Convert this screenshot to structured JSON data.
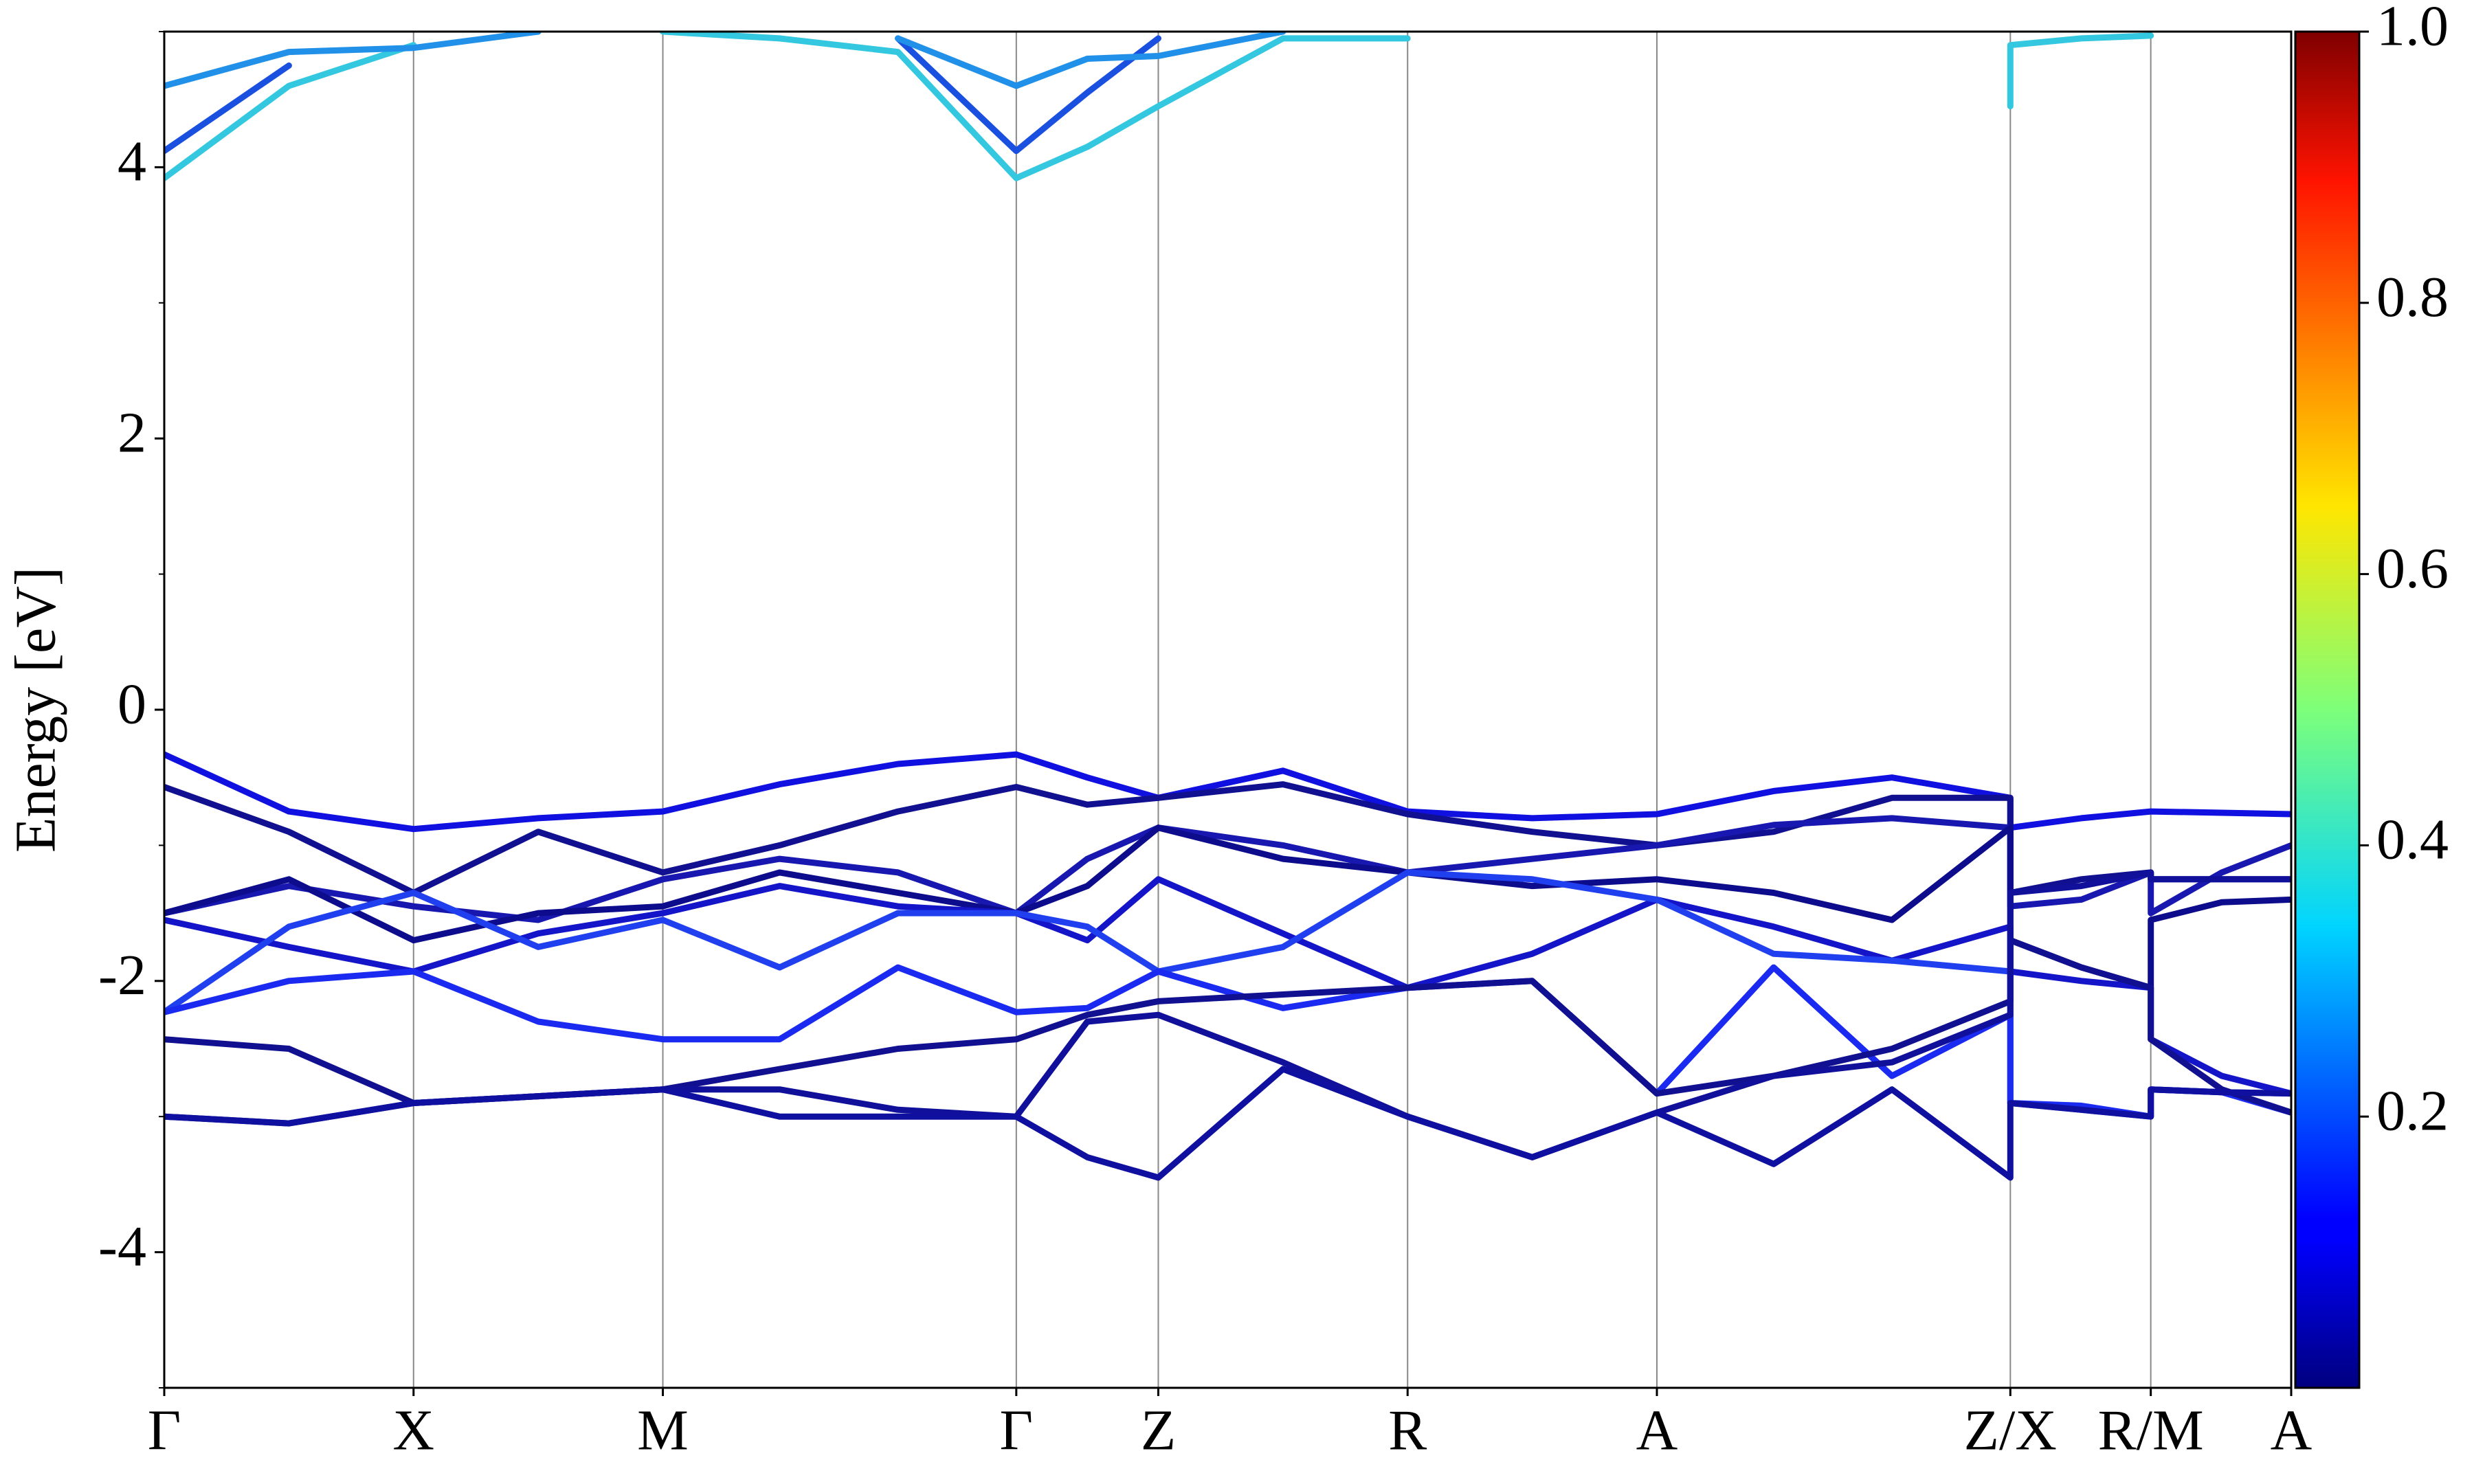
{
  "chart_data": {
    "type": "line",
    "ylabel": "Energy [eV]",
    "x": [
      0,
      0.79,
      1.58,
      2.37,
      3.16,
      3.9,
      4.65,
      5.4,
      5.85,
      6.3,
      7.09,
      7.88,
      8.67,
      9.46,
      10.2,
      10.95,
      11.7,
      11.7,
      12.15,
      12.59,
      12.59,
      13.04,
      13.48
    ],
    "xlim": [
      0,
      13.48
    ],
    "xticks": [
      {
        "value": 0,
        "label": "Γ"
      },
      {
        "value": 1.58,
        "label": "X"
      },
      {
        "value": 3.16,
        "label": "M"
      },
      {
        "value": 5.4,
        "label": "Γ"
      },
      {
        "value": 6.3,
        "label": "Z"
      },
      {
        "value": 7.88,
        "label": "R"
      },
      {
        "value": 9.46,
        "label": "A"
      },
      {
        "value": 11.7,
        "label": "Z/X"
      },
      {
        "value": 12.59,
        "label": "R/M"
      },
      {
        "value": 13.48,
        "label": "A"
      }
    ],
    "ylim": [
      -5,
      5
    ],
    "yticks": [
      -4,
      -2,
      0,
      2,
      4
    ],
    "yminorticks": [
      -5,
      -3,
      -1,
      1,
      3,
      5
    ],
    "grid": "x",
    "colorbar": {
      "lim": [
        0,
        1
      ],
      "ticks": [
        0.2,
        0.4,
        0.6,
        0.8,
        {
          "value": 1,
          "label": "1.0"
        }
      ],
      "colormap": "jet"
    },
    "series": [
      {
        "color": "#33c8e0",
        "values": [
          3.92,
          4.6,
          4.9,
          null,
          5.0,
          4.95,
          4.85,
          3.92,
          4.15,
          4.45,
          4.95,
          4.95,
          null,
          null,
          null,
          null,
          4.45,
          4.9,
          4.95,
          4.97,
          null,
          null,
          null
        ]
      },
      {
        "color": "#1a50e0",
        "values": [
          4.12,
          4.75,
          null,
          null,
          null,
          null,
          4.95,
          4.12,
          4.55,
          4.95,
          null,
          null,
          null,
          null,
          null,
          null,
          null,
          null,
          null,
          null,
          null,
          null,
          null
        ]
      },
      {
        "color": "#2090e8",
        "values": [
          4.6,
          4.85,
          4.88,
          5.0,
          null,
          null,
          4.95,
          4.6,
          4.8,
          4.82,
          5.0,
          null,
          null,
          null,
          null,
          null,
          4.82,
          null,
          null,
          null,
          null,
          null,
          null
        ]
      },
      {
        "color": "#1010e0",
        "values": [
          -0.33,
          -0.75,
          -0.88,
          -0.8,
          -0.75,
          -0.55,
          -0.4,
          -0.33,
          -0.5,
          -0.65,
          -0.45,
          -0.75,
          -0.8,
          -0.77,
          -0.6,
          -0.5,
          -0.65,
          -0.87,
          -0.8,
          -0.75,
          -0.75,
          -0.76,
          -0.77
        ]
      },
      {
        "color": "#101090",
        "values": [
          -0.57,
          -0.9,
          -1.35,
          -0.9,
          -1.2,
          -1.0,
          -0.75,
          -0.57,
          -0.7,
          -0.65,
          -0.55,
          -0.77,
          -0.9,
          -1.0,
          -0.9,
          -0.65,
          -0.65,
          -1.35,
          -1.25,
          -1.2,
          -1.25,
          -1.25,
          -1.25
        ]
      },
      {
        "color": "#1818b0",
        "values": [
          -1.5,
          -1.3,
          -1.45,
          -1.55,
          -1.25,
          -1.1,
          -1.2,
          -1.5,
          -1.1,
          -0.87,
          -1.0,
          -1.2,
          -1.1,
          -1.0,
          -0.85,
          -0.8,
          -0.87,
          -1.45,
          -1.4,
          -1.2,
          -1.5,
          -1.2,
          -1.0
        ]
      },
      {
        "color": "#0c0c8c",
        "values": [
          -1.5,
          -1.25,
          -1.7,
          -1.5,
          -1.45,
          -1.2,
          -1.35,
          -1.5,
          -1.3,
          -0.87,
          -1.1,
          -1.2,
          -1.3,
          -1.25,
          -1.35,
          -1.55,
          -0.87,
          -1.7,
          -1.9,
          -2.05,
          -1.55,
          -1.42,
          -1.4
        ]
      },
      {
        "color": "#1414c8",
        "values": [
          -1.55,
          -1.75,
          -1.93,
          -1.65,
          -1.5,
          -1.3,
          -1.45,
          -1.5,
          -1.7,
          -1.25,
          -1.65,
          -2.05,
          -1.8,
          -1.4,
          -1.6,
          -1.85,
          -1.6,
          -1.93,
          -2.0,
          -2.05,
          -2.43,
          -2.7,
          -2.83
        ]
      },
      {
        "color": "#2040f0",
        "values": [
          -2.23,
          -1.6,
          -1.35,
          -1.75,
          -1.55,
          -1.9,
          -1.5,
          -1.5,
          -1.6,
          -1.93,
          -1.75,
          -1.2,
          -1.25,
          -1.4,
          -1.8,
          -1.85,
          -1.93,
          -2.9,
          -2.95,
          -3.0,
          -2.8,
          -2.82,
          -2.83
        ]
      },
      {
        "color": "#1a2af0",
        "values": [
          -2.23,
          -2.0,
          -1.93,
          -2.3,
          -2.43,
          -2.43,
          -1.9,
          -2.23,
          -2.2,
          -1.93,
          -2.2,
          -2.05,
          -2.0,
          -2.83,
          -1.9,
          -2.7,
          -2.25,
          -2.9,
          -2.92,
          -3.0,
          -2.8,
          -2.82,
          -2.97
        ]
      },
      {
        "color": "#101090",
        "values": [
          -2.43,
          -2.5,
          -2.9,
          -2.85,
          -2.8,
          -2.65,
          -2.5,
          -2.43,
          -2.25,
          -2.15,
          -2.1,
          -2.05,
          -2.0,
          -2.83,
          -2.7,
          -2.5,
          -2.15,
          -1.7,
          -1.9,
          -2.05,
          -2.43,
          -2.8,
          -2.97
        ]
      },
      {
        "color": "#10109a",
        "values": [
          -3.0,
          -3.05,
          -2.9,
          -2.85,
          -2.8,
          -2.8,
          -2.95,
          -3.0,
          -2.3,
          -2.25,
          -2.6,
          -3.0,
          -3.3,
          -2.97,
          -2.7,
          -2.6,
          -2.25,
          -1.35,
          -1.3,
          -1.2,
          -1.25,
          -1.25,
          -1.25
        ]
      },
      {
        "color": "#1010a0",
        "values": [
          -3.0,
          -3.05,
          -2.9,
          -2.85,
          -2.8,
          -3.0,
          -3.0,
          -3.0,
          -3.3,
          -3.45,
          -2.65,
          -3.0,
          -3.3,
          -2.97,
          -3.35,
          -2.8,
          -3.45,
          -2.9,
          -2.95,
          -3.0,
          -2.8,
          -2.82,
          -2.83
        ]
      }
    ]
  }
}
